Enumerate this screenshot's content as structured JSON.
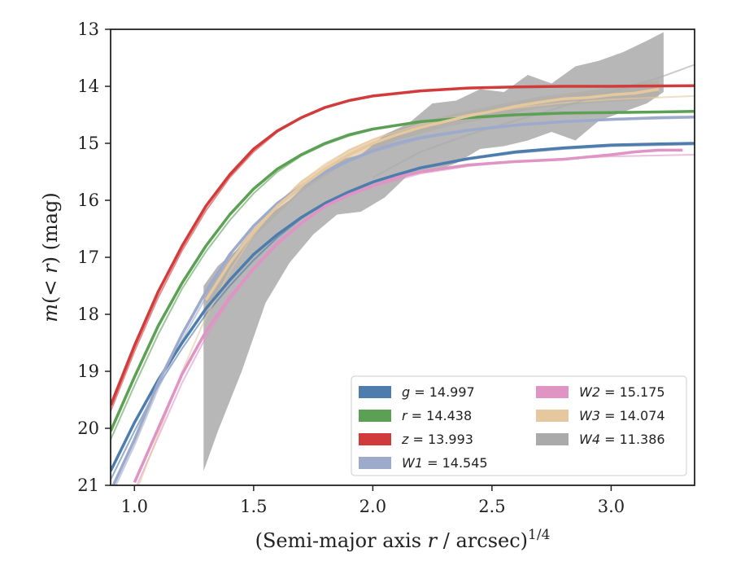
{
  "chart_data": {
    "type": "line",
    "xlabel_prefix": "(Semi-major axis ",
    "xlabel_var": "r",
    "xlabel_mid": " / arcsec)",
    "xlabel_sup": "1/4",
    "ylabel_m": "m",
    "ylabel_inner": "(< ",
    "ylabel_r": "r",
    "ylabel_suffix": ") (mag)",
    "xlim": [
      0.9,
      3.35
    ],
    "ylim": [
      21,
      13
    ],
    "xticks": [
      "1.0",
      "1.5",
      "2.0",
      "2.5",
      "3.0"
    ],
    "xtick_values": [
      1.0,
      1.5,
      2.0,
      2.5,
      3.0
    ],
    "yticks": [
      "13",
      "14",
      "15",
      "16",
      "17",
      "18",
      "19",
      "20",
      "21"
    ],
    "ytick_values": [
      13,
      14,
      15,
      16,
      17,
      18,
      19,
      20,
      21
    ],
    "legend_position": "lower-right",
    "series": [
      {
        "name": "g",
        "label_value": "= 14.997",
        "color": "#4e7cac",
        "data": [
          [
            0.9,
            20.75
          ],
          [
            1.0,
            19.9
          ],
          [
            1.1,
            19.15
          ],
          [
            1.2,
            18.5
          ],
          [
            1.3,
            17.9
          ],
          [
            1.4,
            17.4
          ],
          [
            1.5,
            16.95
          ],
          [
            1.6,
            16.6
          ],
          [
            1.7,
            16.3
          ],
          [
            1.8,
            16.05
          ],
          [
            1.9,
            15.85
          ],
          [
            2.0,
            15.68
          ],
          [
            2.1,
            15.55
          ],
          [
            2.2,
            15.43
          ],
          [
            2.4,
            15.27
          ],
          [
            2.6,
            15.15
          ],
          [
            2.8,
            15.08
          ],
          [
            3.0,
            15.03
          ],
          [
            3.2,
            15.01
          ],
          [
            3.35,
            15.0
          ]
        ],
        "model": [
          [
            0.9,
            20.9
          ],
          [
            1.0,
            20.05
          ],
          [
            1.1,
            19.25
          ],
          [
            1.2,
            18.6
          ],
          [
            1.3,
            18.0
          ],
          [
            1.4,
            17.5
          ],
          [
            1.5,
            17.05
          ],
          [
            1.6,
            16.65
          ],
          [
            1.7,
            16.32
          ],
          [
            1.8,
            16.05
          ],
          [
            1.9,
            15.85
          ],
          [
            2.0,
            15.68
          ],
          [
            2.2,
            15.44
          ],
          [
            2.4,
            15.28
          ],
          [
            2.6,
            15.17
          ],
          [
            2.8,
            15.1
          ],
          [
            3.0,
            15.05
          ],
          [
            3.35,
            15.02
          ]
        ]
      },
      {
        "name": "r",
        "label_value": "= 14.438",
        "color": "#5ba055",
        "data": [
          [
            0.9,
            20.05
          ],
          [
            1.0,
            19.1
          ],
          [
            1.1,
            18.2
          ],
          [
            1.2,
            17.45
          ],
          [
            1.3,
            16.8
          ],
          [
            1.4,
            16.25
          ],
          [
            1.5,
            15.8
          ],
          [
            1.6,
            15.45
          ],
          [
            1.7,
            15.2
          ],
          [
            1.8,
            15.0
          ],
          [
            1.9,
            14.85
          ],
          [
            2.0,
            14.75
          ],
          [
            2.2,
            14.62
          ],
          [
            2.4,
            14.55
          ],
          [
            2.6,
            14.5
          ],
          [
            2.8,
            14.47
          ],
          [
            3.0,
            14.46
          ],
          [
            3.2,
            14.45
          ],
          [
            3.35,
            14.44
          ]
        ],
        "model": [
          [
            0.9,
            20.2
          ],
          [
            1.0,
            19.25
          ],
          [
            1.1,
            18.35
          ],
          [
            1.2,
            17.55
          ],
          [
            1.3,
            16.9
          ],
          [
            1.4,
            16.35
          ],
          [
            1.5,
            15.88
          ],
          [
            1.6,
            15.5
          ],
          [
            1.7,
            15.22
          ],
          [
            1.8,
            15.02
          ],
          [
            1.9,
            14.87
          ],
          [
            2.0,
            14.76
          ],
          [
            2.2,
            14.62
          ],
          [
            2.4,
            14.55
          ],
          [
            2.6,
            14.5
          ],
          [
            2.8,
            14.48
          ],
          [
            3.0,
            14.46
          ],
          [
            3.35,
            14.45
          ]
        ]
      },
      {
        "name": "z",
        "label_value": "= 13.993",
        "color": "#d13b3b",
        "data": [
          [
            0.9,
            19.6
          ],
          [
            1.0,
            18.55
          ],
          [
            1.1,
            17.6
          ],
          [
            1.2,
            16.8
          ],
          [
            1.3,
            16.1
          ],
          [
            1.4,
            15.55
          ],
          [
            1.5,
            15.1
          ],
          [
            1.6,
            14.78
          ],
          [
            1.7,
            14.55
          ],
          [
            1.8,
            14.37
          ],
          [
            1.9,
            14.25
          ],
          [
            2.0,
            14.17
          ],
          [
            2.2,
            14.08
          ],
          [
            2.4,
            14.03
          ],
          [
            2.6,
            14.01
          ],
          [
            2.8,
            14.0
          ],
          [
            3.0,
            14.0
          ],
          [
            3.35,
            13.99
          ]
        ],
        "model": [
          [
            0.9,
            19.7
          ],
          [
            1.0,
            18.65
          ],
          [
            1.1,
            17.7
          ],
          [
            1.2,
            16.88
          ],
          [
            1.3,
            16.18
          ],
          [
            1.4,
            15.6
          ],
          [
            1.5,
            15.15
          ],
          [
            1.6,
            14.8
          ],
          [
            1.7,
            14.56
          ],
          [
            1.8,
            14.38
          ],
          [
            1.9,
            14.26
          ],
          [
            2.0,
            14.17
          ],
          [
            2.2,
            14.08
          ],
          [
            2.4,
            14.03
          ],
          [
            2.6,
            14.01
          ],
          [
            3.0,
            14.0
          ],
          [
            3.35,
            13.99
          ]
        ]
      },
      {
        "name": "W1",
        "label_value": "= 14.545",
        "color": "#9daacb",
        "data": [
          [
            0.9,
            21.1
          ],
          [
            1.0,
            20.2
          ],
          [
            1.1,
            19.2
          ],
          [
            1.2,
            18.35
          ],
          [
            1.3,
            17.6
          ],
          [
            1.4,
            16.95
          ],
          [
            1.5,
            16.45
          ],
          [
            1.6,
            16.05
          ],
          [
            1.7,
            15.75
          ],
          [
            1.8,
            15.5
          ],
          [
            1.9,
            15.3
          ],
          [
            2.0,
            15.13
          ],
          [
            2.1,
            15.0
          ],
          [
            2.2,
            14.9
          ],
          [
            2.4,
            14.77
          ],
          [
            2.6,
            14.68
          ],
          [
            2.8,
            14.62
          ],
          [
            3.0,
            14.58
          ],
          [
            3.2,
            14.55
          ],
          [
            3.35,
            14.54
          ]
        ],
        "model": [
          [
            0.9,
            21.2
          ],
          [
            1.0,
            20.3
          ],
          [
            1.1,
            19.3
          ],
          [
            1.2,
            18.45
          ],
          [
            1.3,
            17.7
          ],
          [
            1.4,
            17.05
          ],
          [
            1.5,
            16.52
          ],
          [
            1.6,
            16.1
          ],
          [
            1.7,
            15.78
          ],
          [
            1.8,
            15.52
          ],
          [
            1.9,
            15.32
          ],
          [
            2.0,
            15.15
          ],
          [
            2.2,
            14.92
          ],
          [
            2.4,
            14.78
          ],
          [
            2.6,
            14.69
          ],
          [
            2.8,
            14.63
          ],
          [
            3.0,
            14.59
          ],
          [
            3.35,
            14.55
          ]
        ]
      },
      {
        "name": "W2",
        "label_value": "= 15.175",
        "color": "#df94c4",
        "data": [
          [
            1.0,
            20.95
          ],
          [
            1.1,
            20.0
          ],
          [
            1.2,
            19.05
          ],
          [
            1.3,
            18.3
          ],
          [
            1.4,
            17.7
          ],
          [
            1.5,
            17.2
          ],
          [
            1.6,
            16.75
          ],
          [
            1.7,
            16.4
          ],
          [
            1.8,
            16.1
          ],
          [
            1.9,
            15.9
          ],
          [
            2.0,
            15.75
          ],
          [
            2.1,
            15.6
          ],
          [
            2.2,
            15.5
          ],
          [
            2.4,
            15.38
          ],
          [
            2.6,
            15.32
          ],
          [
            2.8,
            15.28
          ],
          [
            3.0,
            15.2
          ],
          [
            3.1,
            15.15
          ],
          [
            3.2,
            15.12
          ],
          [
            3.3,
            15.12
          ]
        ],
        "model": [
          [
            1.0,
            21.1
          ],
          [
            1.1,
            20.15
          ],
          [
            1.2,
            19.2
          ],
          [
            1.3,
            18.4
          ],
          [
            1.4,
            17.75
          ],
          [
            1.5,
            17.22
          ],
          [
            1.6,
            16.78
          ],
          [
            1.7,
            16.42
          ],
          [
            1.8,
            16.12
          ],
          [
            1.9,
            15.92
          ],
          [
            2.0,
            15.76
          ],
          [
            2.2,
            15.53
          ],
          [
            2.4,
            15.4
          ],
          [
            2.6,
            15.32
          ],
          [
            2.8,
            15.27
          ],
          [
            3.0,
            15.23
          ],
          [
            3.35,
            15.2
          ]
        ]
      },
      {
        "name": "W3",
        "label_value": "= 14.074",
        "color": "#e6c89f",
        "data": [
          [
            1.3,
            17.75
          ],
          [
            1.4,
            17.1
          ],
          [
            1.5,
            16.55
          ],
          [
            1.6,
            16.1
          ],
          [
            1.7,
            15.75
          ],
          [
            1.8,
            15.45
          ],
          [
            1.9,
            15.2
          ],
          [
            2.0,
            15.0
          ],
          [
            2.1,
            14.85
          ],
          [
            2.2,
            14.72
          ],
          [
            2.3,
            14.62
          ],
          [
            2.4,
            14.52
          ],
          [
            2.5,
            14.44
          ],
          [
            2.6,
            14.35
          ],
          [
            2.7,
            14.28
          ],
          [
            2.8,
            14.22
          ],
          [
            2.9,
            14.2
          ],
          [
            3.0,
            14.15
          ],
          [
            3.1,
            14.12
          ],
          [
            3.2,
            14.05
          ]
        ],
        "band": [
          [
            1.3,
            17.6,
            17.9
          ],
          [
            1.5,
            16.45,
            16.65
          ],
          [
            1.7,
            15.65,
            15.85
          ],
          [
            1.9,
            15.1,
            15.3
          ],
          [
            2.1,
            14.75,
            14.95
          ],
          [
            2.3,
            14.52,
            14.72
          ],
          [
            2.5,
            14.34,
            14.55
          ],
          [
            2.7,
            14.18,
            14.38
          ],
          [
            2.9,
            14.08,
            14.3
          ],
          [
            3.1,
            13.95,
            14.25
          ],
          [
            3.2,
            13.9,
            14.2
          ]
        ],
        "model": [
          [
            1.0,
            21.2
          ],
          [
            1.1,
            20.1
          ],
          [
            1.2,
            19.0
          ],
          [
            1.3,
            18.05
          ],
          [
            1.4,
            17.25
          ],
          [
            1.5,
            16.6
          ],
          [
            1.6,
            16.08
          ],
          [
            1.7,
            15.68
          ],
          [
            1.8,
            15.36
          ],
          [
            1.9,
            15.12
          ],
          [
            2.0,
            14.93
          ],
          [
            2.2,
            14.67
          ],
          [
            2.4,
            14.5
          ],
          [
            2.6,
            14.38
          ],
          [
            2.8,
            14.29
          ],
          [
            3.0,
            14.23
          ],
          [
            3.35,
            14.17
          ]
        ]
      },
      {
        "name": "W4",
        "label_value": "= 11.386",
        "color": "#aaaaaa",
        "band": [
          [
            1.29,
            17.5,
            20.75
          ],
          [
            1.35,
            17.15,
            20.05
          ],
          [
            1.45,
            16.8,
            19.0
          ],
          [
            1.55,
            16.3,
            17.8
          ],
          [
            1.65,
            16.0,
            17.1
          ],
          [
            1.75,
            15.6,
            16.6
          ],
          [
            1.85,
            15.3,
            16.25
          ],
          [
            1.95,
            15.2,
            16.2
          ],
          [
            2.05,
            14.85,
            15.95
          ],
          [
            2.15,
            14.65,
            15.55
          ],
          [
            2.25,
            14.3,
            15.5
          ],
          [
            2.35,
            14.25,
            15.35
          ],
          [
            2.45,
            14.05,
            15.1
          ],
          [
            2.55,
            14.1,
            15.05
          ],
          [
            2.65,
            13.8,
            14.95
          ],
          [
            2.75,
            13.95,
            14.8
          ],
          [
            2.85,
            13.65,
            14.95
          ],
          [
            2.95,
            13.55,
            14.6
          ],
          [
            3.05,
            13.4,
            14.45
          ],
          [
            3.15,
            13.2,
            14.3
          ],
          [
            3.22,
            13.05,
            14.1
          ]
        ],
        "model": [
          [
            2.0,
            15.6
          ],
          [
            2.2,
            15.15
          ],
          [
            2.4,
            14.85
          ],
          [
            2.6,
            14.6
          ],
          [
            2.8,
            14.35
          ],
          [
            3.0,
            14.1
          ],
          [
            3.2,
            13.85
          ],
          [
            3.35,
            13.62
          ]
        ]
      }
    ]
  }
}
